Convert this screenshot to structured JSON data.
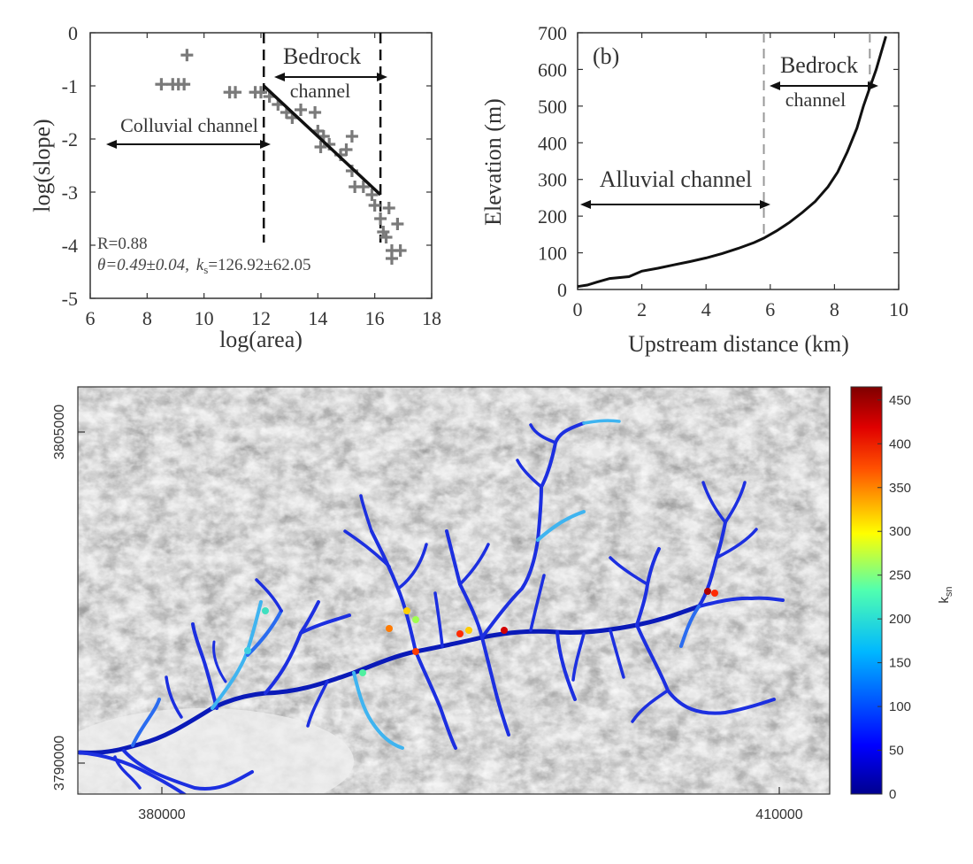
{
  "chart_data": [
    {
      "type": "scatter",
      "panel": "a",
      "xlabel": "log(area)",
      "ylabel": "log(slope)",
      "xlim": [
        6,
        18
      ],
      "ylim": [
        -5,
        0
      ],
      "xticks": [
        "6",
        "8",
        "10",
        "12",
        "14",
        "16",
        "18"
      ],
      "yticks": [
        "0",
        "-1",
        "-2",
        "-3",
        "-4",
        "-5"
      ],
      "points": [
        [
          9.4,
          -0.42
        ],
        [
          8.5,
          -0.97
        ],
        [
          8.9,
          -0.97
        ],
        [
          9.1,
          -0.97
        ],
        [
          9.3,
          -0.97
        ],
        [
          10.9,
          -1.12
        ],
        [
          11.1,
          -1.12
        ],
        [
          11.8,
          -1.12
        ],
        [
          12.0,
          -1.12
        ],
        [
          12.3,
          -1.2
        ],
        [
          12.6,
          -1.35
        ],
        [
          12.9,
          -1.5
        ],
        [
          13.1,
          -1.6
        ],
        [
          13.4,
          -1.45
        ],
        [
          13.9,
          -1.5
        ],
        [
          14.0,
          -1.85
        ],
        [
          14.2,
          -1.95
        ],
        [
          14.1,
          -2.15
        ],
        [
          14.4,
          -2.1
        ],
        [
          14.8,
          -2.3
        ],
        [
          15.0,
          -2.2
        ],
        [
          15.2,
          -1.95
        ],
        [
          15.2,
          -2.6
        ],
        [
          15.3,
          -2.9
        ],
        [
          15.6,
          -2.9
        ],
        [
          15.9,
          -3.05
        ],
        [
          16.0,
          -3.25
        ],
        [
          16.2,
          -3.5
        ],
        [
          16.3,
          -3.75
        ],
        [
          16.5,
          -3.3
        ],
        [
          16.4,
          -3.85
        ],
        [
          16.6,
          -4.1
        ],
        [
          16.8,
          -3.6
        ],
        [
          16.9,
          -4.1
        ],
        [
          16.6,
          -4.25
        ]
      ],
      "fit_line": [
        [
          12.1,
          -1.0
        ],
        [
          16.2,
          -3.05
        ]
      ],
      "divider_x": [
        12.1,
        16.2
      ],
      "annotations": {
        "bedrock_line1": "Bedrock",
        "bedrock_line2": "channel",
        "colluvial": "Colluvial channel",
        "r": "R=0.88",
        "theta": "θ=0.49±0.04,",
        "ks_k": "k",
        "ks_s": "s",
        "ks_rest": "=126.92±62.05"
      }
    },
    {
      "type": "line",
      "panel": "b",
      "label": "(b)",
      "xlabel": "Upstream distance (km)",
      "ylabel": "Elevation (m)",
      "xlim": [
        0,
        10
      ],
      "ylim": [
        0,
        700
      ],
      "xticks": [
        "0",
        "2",
        "4",
        "6",
        "8",
        "10"
      ],
      "yticks": [
        "700",
        "600",
        "500",
        "400",
        "300",
        "200",
        "100",
        "0"
      ],
      "x": [
        0,
        0.3,
        0.6,
        1.0,
        1.6,
        2.0,
        2.5,
        3.0,
        3.5,
        4.0,
        4.5,
        5.0,
        5.5,
        5.8,
        6.2,
        6.6,
        7.0,
        7.4,
        7.8,
        8.1,
        8.4,
        8.7,
        8.9,
        9.1,
        9.3,
        9.45,
        9.6
      ],
      "y": [
        8,
        12,
        20,
        30,
        35,
        50,
        58,
        67,
        76,
        86,
        98,
        112,
        128,
        140,
        160,
        183,
        210,
        240,
        280,
        320,
        375,
        440,
        500,
        550,
        600,
        645,
        690
      ],
      "divider_x": [
        5.8,
        9.1
      ],
      "annotations": {
        "alluvial": "Alluvial channel",
        "bedrock_line1": "Bedrock",
        "bedrock_line2": "channel"
      }
    },
    {
      "type": "heatmap",
      "panel": "c",
      "xticks": [
        "380000",
        "410000"
      ],
      "yticks": [
        "3805000",
        "3790000"
      ],
      "colorbar_label": "k",
      "colorbar_label_sub": "sn",
      "colorbar_ticks": [
        "450",
        "400",
        "350",
        "300",
        "250",
        "200",
        "150",
        "100",
        "50",
        "0"
      ],
      "colorbar_range": [
        0,
        465
      ]
    }
  ]
}
